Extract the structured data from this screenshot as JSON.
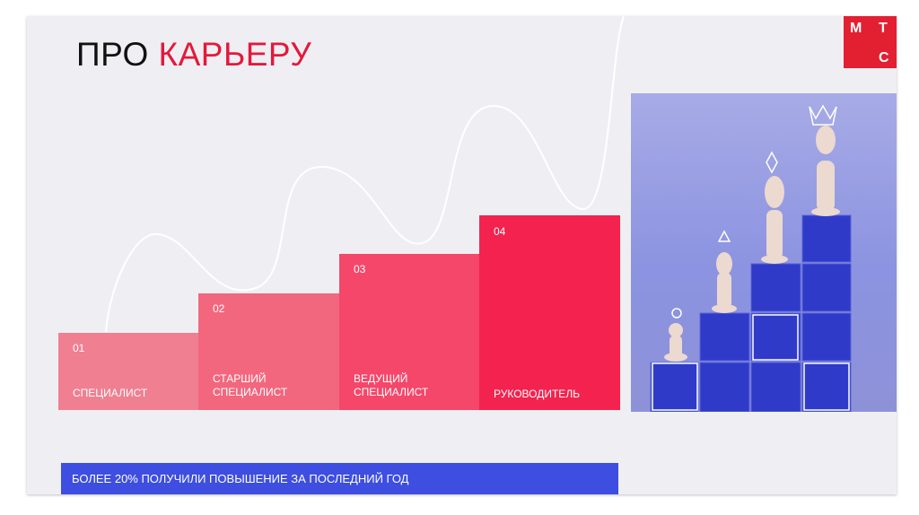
{
  "title": {
    "part1": "ПРО ",
    "part2": "КАРЬЕРУ"
  },
  "logo": {
    "l1": "М",
    "l2": "Т",
    "l3": "С"
  },
  "steps": [
    {
      "num": "01",
      "label": "СПЕЦИАЛИСТ",
      "color": "#f07f92"
    },
    {
      "num": "02",
      "label": "СТАРШИЙ СПЕЦИАЛИСТ",
      "color": "#f2677e"
    },
    {
      "num": "03",
      "label": "ВЕДУЩИЙ СПЕЦИАЛИСТ",
      "color": "#f4476a"
    },
    {
      "num": "04",
      "label": "РУКОВОДИТЕЛЬ",
      "color": "#f4224e"
    }
  ],
  "photo": {
    "subject": "chess pieces on blue blocks staircase"
  },
  "banner": {
    "text": "БОЛЕЕ 20% ПОЛУЧИЛИ ПОВЫШЕНИЕ ЗА ПОСЛЕДНИЙ ГОД"
  },
  "colors": {
    "accent": "#e3193b",
    "logo": "#e31f32",
    "banner": "#3d4ee0"
  }
}
